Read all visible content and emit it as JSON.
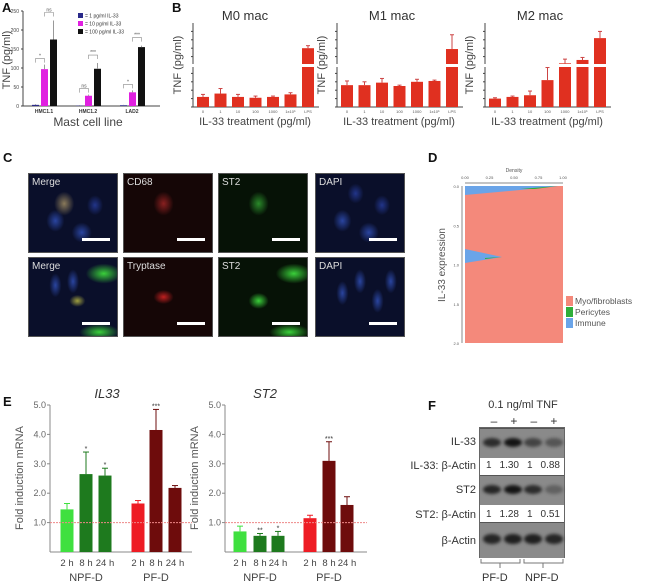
{
  "panels": {
    "a": "A",
    "b": "B",
    "c": "C",
    "d": "D",
    "e": "E",
    "f": "F"
  },
  "chart_data": [
    {
      "panel": "A",
      "type": "bar",
      "ylabel": "TNF (pg/ml)",
      "xlabel": "Mast cell line",
      "ylim": [
        0,
        250
      ],
      "yticks": [
        "0",
        "50",
        "100",
        "150",
        "200",
        "250"
      ],
      "categories": [
        "HMC1.1",
        "HMC1.2",
        "LAD2"
      ],
      "series": [
        {
          "name": "= 1 pg/ml IL-33",
          "color": "#2a2a8a",
          "values": [
            3,
            1,
            2
          ],
          "errors": [
            2,
            1,
            1
          ]
        },
        {
          "name": "= 10 pg/ml IL-33",
          "color": "#e020e0",
          "values": [
            97,
            27,
            36
          ],
          "errors": [
            12,
            3,
            5
          ]
        },
        {
          "name": "= 100 pg/ml IL-33",
          "color": "#111111",
          "values": [
            175,
            98,
            155
          ],
          "errors": [
            50,
            15,
            4
          ]
        }
      ],
      "significance": [
        [
          "*",
          "ns"
        ],
        [
          "ns",
          "***"
        ],
        [
          "*",
          "***"
        ]
      ]
    },
    {
      "panel": "B",
      "type": "bar",
      "title": "M0 mac",
      "ylabel": "TNF (pg/ml)",
      "xlabel": "IL-33 treatment (pg/ml)",
      "broken_axis": true,
      "color": "#e03020",
      "categories": [
        "0",
        "1",
        "10",
        "100",
        "1000",
        "1x10⁵",
        "LPS"
      ],
      "values": [
        12,
        16,
        12,
        11,
        12,
        15,
        70
      ],
      "errors": [
        3,
        6,
        3,
        2,
        1,
        2,
        3
      ]
    },
    {
      "panel": "B",
      "type": "bar",
      "title": "M1 mac",
      "ylabel": "TNF (pg/ml)",
      "xlabel": "IL-33 treatment (pg/ml)",
      "broken_axis": true,
      "color": "#e03020",
      "categories": [
        "0",
        "1",
        "10",
        "100",
        "1000",
        "1x10⁵",
        "LPS"
      ],
      "values": [
        26,
        26,
        29,
        25,
        30,
        31,
        69
      ],
      "errors": [
        5,
        4,
        5,
        1,
        3,
        1,
        17
      ]
    },
    {
      "panel": "B",
      "type": "bar",
      "title": "M2 mac",
      "ylabel": "TNF (pg/ml)",
      "xlabel": "IL-33 treatment (pg/ml)",
      "broken_axis": true,
      "color": "#e03020",
      "categories": [
        "0",
        "1",
        "10",
        "100",
        "1000",
        "1x10⁵",
        "LPS"
      ],
      "values": [
        10,
        12,
        14,
        32,
        52,
        56,
        82
      ],
      "errors": [
        1,
        1,
        5,
        15,
        5,
        3,
        8
      ]
    },
    {
      "panel": "D",
      "type": "area",
      "xlabel": "Density",
      "ylabel": "IL-33 expression",
      "xticks": [
        "0.00",
        "0.25",
        "0.50",
        "0.75",
        "1.00"
      ],
      "yticks": [
        "0.0",
        "0.5",
        "1.0",
        "1.5",
        "2.0"
      ],
      "legend": "right",
      "series": [
        {
          "name": "Myo/fibroblasts",
          "color": "#f4897b"
        },
        {
          "name": "Pericytes",
          "color": "#2fae3a"
        },
        {
          "name": "Immune",
          "color": "#6aa4e8"
        }
      ]
    },
    {
      "panel": "E",
      "type": "bar",
      "title": "IL33",
      "ylabel": "Fold induction mRNA",
      "ylim": [
        0,
        5
      ],
      "yticks": [
        "1.0",
        "2.0",
        "3.0",
        "4.0",
        "5.0"
      ],
      "reference_line": 1.0,
      "categories": [
        "2 h",
        "8 h",
        "24 h",
        "2 h",
        "8 h",
        "24 h"
      ],
      "groups": [
        "NPF-D",
        "PF-D"
      ],
      "values": [
        1.45,
        2.65,
        2.6,
        1.65,
        4.15,
        2.18
      ],
      "errors": [
        0.2,
        0.75,
        0.25,
        0.1,
        0.7,
        0.08
      ],
      "significance": [
        "",
        "*",
        "*",
        "",
        "***",
        ""
      ],
      "colors": [
        "#3fe03f",
        "#1e7a1e",
        "#1e7a1e",
        "#ee1c24",
        "#6e0c0c",
        "#6e0c0c"
      ]
    },
    {
      "panel": "E",
      "type": "bar",
      "title": "ST2",
      "ylabel": "Fold induction mRNA",
      "ylim": [
        0,
        5
      ],
      "yticks": [
        "1.0",
        "2.0",
        "3.0",
        "4.0",
        "5.0"
      ],
      "reference_line": 1.0,
      "categories": [
        "2 h",
        "8 h",
        "24 h",
        "2 h",
        "8 h",
        "24 h"
      ],
      "groups": [
        "NPF-D",
        "PF-D"
      ],
      "values": [
        0.7,
        0.55,
        0.55,
        1.15,
        3.1,
        1.6
      ],
      "errors": [
        0.18,
        0.08,
        0.15,
        0.1,
        0.65,
        0.28
      ],
      "significance": [
        "",
        "**",
        "*",
        "",
        "***",
        ""
      ],
      "colors": [
        "#3fe03f",
        "#1e7a1e",
        "#1e7a1e",
        "#ee1c24",
        "#6e0c0c",
        "#6e0c0c"
      ]
    }
  ],
  "microscopy": {
    "row1": [
      "Merge",
      "CD68",
      "ST2",
      "DAPI"
    ],
    "row2": [
      "Merge",
      "Tryptase",
      "ST2",
      "DAPI"
    ]
  },
  "blot": {
    "treatment": "0.1 ng/ml TNF",
    "lanes": [
      "–",
      "+",
      "–",
      "+"
    ],
    "rows": {
      "il33": "IL-33",
      "il33_ratio": "IL-33: β-Actin",
      "st2": "ST2",
      "st2_ratio": "ST2: β-Actin",
      "actin": "β-Actin"
    },
    "il33_ratios": [
      "1",
      "1.30",
      "1",
      "0.88"
    ],
    "st2_ratios": [
      "1",
      "1.28",
      "1",
      "0.51"
    ],
    "groups": [
      "PF-D",
      "NPF-D"
    ]
  }
}
